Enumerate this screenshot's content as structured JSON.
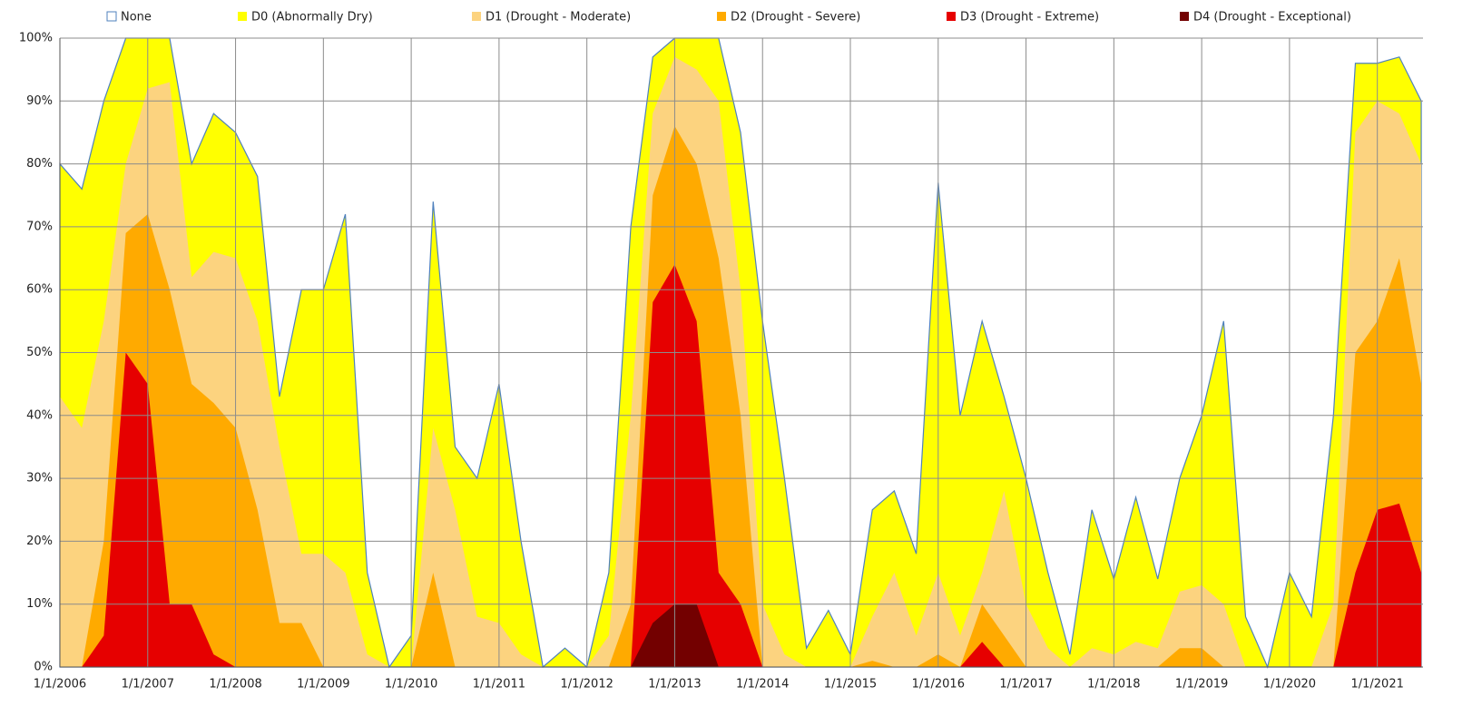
{
  "chart_data": {
    "type": "area",
    "x": [
      2006,
      2006.25,
      2006.5,
      2006.75,
      2007,
      2007.25,
      2007.5,
      2007.75,
      2008,
      2008.25,
      2008.5,
      2008.75,
      2009,
      2009.25,
      2009.5,
      2009.75,
      2010,
      2010.25,
      2010.5,
      2010.75,
      2011,
      2011.25,
      2011.5,
      2011.75,
      2012,
      2012.25,
      2012.5,
      2012.75,
      2013,
      2013.25,
      2013.5,
      2013.75,
      2014,
      2014.25,
      2014.5,
      2014.75,
      2015,
      2015.25,
      2015.5,
      2015.75,
      2016,
      2016.25,
      2016.5,
      2016.75,
      2017,
      2017.25,
      2017.5,
      2017.75,
      2018,
      2018.25,
      2018.5,
      2018.75,
      2019,
      2019.25,
      2019.5,
      2019.75,
      2020,
      2020.25,
      2020.5,
      2020.75,
      2021,
      2021.25,
      2021.5
    ],
    "series": [
      {
        "name": "None",
        "color": "#ffffff",
        "values": [
          100,
          100,
          100,
          100,
          100,
          100,
          100,
          100,
          100,
          100,
          100,
          100,
          100,
          100,
          100,
          100,
          100,
          100,
          100,
          100,
          100,
          100,
          100,
          100,
          100,
          100,
          100,
          100,
          100,
          100,
          100,
          100,
          100,
          100,
          100,
          100,
          100,
          100,
          100,
          100,
          100,
          100,
          100,
          100,
          100,
          100,
          100,
          100,
          100,
          100,
          100,
          100,
          100,
          100,
          100,
          100,
          100,
          100,
          100,
          100,
          100,
          100,
          100
        ]
      },
      {
        "name": "D0 (Abnormally Dry)",
        "color": "#ffff00",
        "values": [
          80,
          76,
          90,
          100,
          100,
          100,
          80,
          88,
          85,
          78,
          43,
          60,
          60,
          72,
          15,
          0,
          5,
          74,
          35,
          30,
          45,
          20,
          0,
          3,
          0,
          15,
          70,
          97,
          100,
          100,
          100,
          85,
          55,
          30,
          3,
          9,
          2,
          25,
          28,
          18,
          77,
          40,
          55,
          43,
          30,
          15,
          2,
          25,
          14,
          27,
          14,
          30,
          40,
          55,
          8,
          0,
          15,
          8,
          40,
          96,
          96,
          97,
          90
        ]
      },
      {
        "name": "D1 (Drought - Moderate)",
        "color": "#fcd37f",
        "values": [
          43,
          38,
          55,
          80,
          92,
          93,
          62,
          66,
          65,
          55,
          35,
          18,
          18,
          15,
          2,
          0,
          0,
          38,
          25,
          8,
          7,
          2,
          0,
          0,
          0,
          5,
          40,
          88,
          97,
          95,
          90,
          60,
          10,
          2,
          0,
          0,
          0,
          8,
          15,
          5,
          15,
          5,
          15,
          28,
          10,
          3,
          0,
          3,
          2,
          4,
          3,
          12,
          13,
          10,
          0,
          0,
          0,
          0,
          10,
          85,
          90,
          88,
          80
        ]
      },
      {
        "name": "D2 (Drought - Severe)",
        "color": "#ffaa00",
        "values": [
          0,
          0,
          20,
          69,
          72,
          60,
          45,
          42,
          38,
          25,
          7,
          7,
          0,
          0,
          0,
          0,
          0,
          15,
          0,
          0,
          0,
          0,
          0,
          0,
          0,
          0,
          10,
          75,
          86,
          80,
          65,
          40,
          0,
          0,
          0,
          0,
          0,
          1,
          0,
          0,
          2,
          0,
          10,
          5,
          0,
          0,
          0,
          0,
          0,
          0,
          0,
          3,
          3,
          0,
          0,
          0,
          0,
          0,
          0,
          50,
          55,
          65,
          45
        ]
      },
      {
        "name": "D3 (Drought - Extreme)",
        "color": "#e60000",
        "values": [
          0,
          0,
          5,
          50,
          45,
          10,
          10,
          2,
          0,
          0,
          0,
          0,
          0,
          0,
          0,
          0,
          0,
          0,
          0,
          0,
          0,
          0,
          0,
          0,
          0,
          0,
          0,
          58,
          64,
          55,
          15,
          10,
          0,
          0,
          0,
          0,
          0,
          0,
          0,
          0,
          0,
          0,
          4,
          0,
          0,
          0,
          0,
          0,
          0,
          0,
          0,
          0,
          0,
          0,
          0,
          0,
          0,
          0,
          0,
          15,
          25,
          26,
          15
        ]
      },
      {
        "name": "D4 (Drought - Exceptional)",
        "color": "#730000",
        "values": [
          0,
          0,
          0,
          0,
          0,
          0,
          0,
          0,
          0,
          0,
          0,
          0,
          0,
          0,
          0,
          0,
          0,
          0,
          0,
          0,
          0,
          0,
          0,
          0,
          0,
          0,
          0,
          7,
          10,
          10,
          0,
          0,
          0,
          0,
          0,
          0,
          0,
          0,
          0,
          0,
          0,
          0,
          0,
          0,
          0,
          0,
          0,
          0,
          0,
          0,
          0,
          0,
          0,
          0,
          0,
          0,
          0,
          0,
          0,
          0,
          0,
          0,
          0
        ]
      }
    ],
    "xlim": [
      2006,
      2021.52
    ],
    "xticks": [
      {
        "value": 2006,
        "label": "1/1/2006"
      },
      {
        "value": 2007,
        "label": "1/1/2007"
      },
      {
        "value": 2008,
        "label": "1/1/2008"
      },
      {
        "value": 2009,
        "label": "1/1/2009"
      },
      {
        "value": 2010,
        "label": "1/1/2010"
      },
      {
        "value": 2011,
        "label": "1/1/2011"
      },
      {
        "value": 2012,
        "label": "1/1/2012"
      },
      {
        "value": 2013,
        "label": "1/1/2013"
      },
      {
        "value": 2014,
        "label": "1/1/2014"
      },
      {
        "value": 2015,
        "label": "1/1/2015"
      },
      {
        "value": 2016,
        "label": "1/1/2016"
      },
      {
        "value": 2017,
        "label": "1/1/2017"
      },
      {
        "value": 2018,
        "label": "1/1/2018"
      },
      {
        "value": 2019,
        "label": "1/1/2019"
      },
      {
        "value": 2020,
        "label": "1/1/2020"
      },
      {
        "value": 2021,
        "label": "1/1/2021"
      }
    ],
    "ylim": [
      0,
      100
    ],
    "yticks": [
      {
        "value": 0,
        "label": "0%"
      },
      {
        "value": 10,
        "label": "10%"
      },
      {
        "value": 20,
        "label": "20%"
      },
      {
        "value": 30,
        "label": "30%"
      },
      {
        "value": 40,
        "label": "40%"
      },
      {
        "value": 50,
        "label": "50%"
      },
      {
        "value": 60,
        "label": "60%"
      },
      {
        "value": 70,
        "label": "70%"
      },
      {
        "value": 80,
        "label": "80%"
      },
      {
        "value": 90,
        "label": "90%"
      },
      {
        "value": 100,
        "label": "100%"
      }
    ],
    "grid": true,
    "legend": "top"
  }
}
